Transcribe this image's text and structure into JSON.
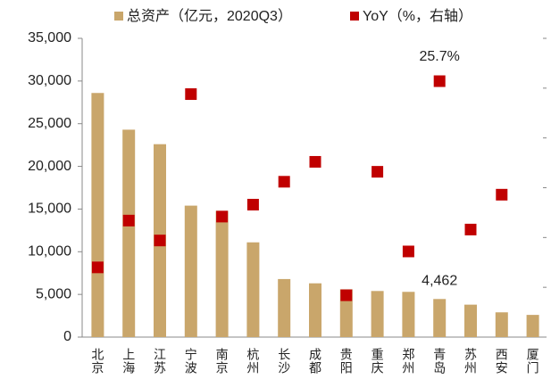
{
  "chart_data": {
    "type": "bar",
    "categories": [
      "北京",
      "上海",
      "江苏",
      "宁波",
      "南京",
      "杭州",
      "长沙",
      "成都",
      "贵阳",
      "重庆",
      "郑州",
      "青岛",
      "苏州",
      "西安",
      "厦门"
    ],
    "series": [
      {
        "name": "总资产（亿元，2020Q3）",
        "type": "bar",
        "color": "#C9A66B",
        "values": [
          28600,
          24300,
          22600,
          15400,
          14800,
          11100,
          6800,
          6300,
          5600,
          5400,
          5300,
          4462,
          3800,
          2900,
          2600
        ],
        "value_labels": [
          null,
          null,
          null,
          null,
          null,
          null,
          null,
          null,
          null,
          null,
          null,
          "4,462",
          null,
          null,
          null
        ]
      },
      {
        "name": "YoY（%，右轴）",
        "type": "scatter",
        "axis": "y2",
        "color": "#C00000",
        "values": [
          7.0,
          11.7,
          9.7,
          24.4,
          12.1,
          13.3,
          15.6,
          17.6,
          4.2,
          16.6,
          8.6,
          25.7,
          10.8,
          14.3,
          null
        ],
        "value_labels": [
          null,
          null,
          null,
          null,
          null,
          null,
          null,
          null,
          null,
          null,
          null,
          "25.7%",
          null,
          null,
          null
        ]
      }
    ],
    "ylim": [
      0,
      35000
    ],
    "yticks": [
      0,
      {
        "value": 5000,
        "label": "5,000"
      },
      {
        "value": 10000,
        "label": "10,000"
      },
      {
        "value": 15000,
        "label": "15,000"
      },
      {
        "value": 20000,
        "label": "20,000"
      },
      {
        "value": 25000,
        "label": "25,000"
      },
      {
        "value": 30000,
        "label": "30,000"
      },
      {
        "value": 35000,
        "label": "35,000"
      }
    ],
    "y2lim": [
      0,
      30
    ],
    "y2ticks": [
      0,
      5,
      10,
      15,
      20,
      25,
      30
    ],
    "legend": "top"
  }
}
